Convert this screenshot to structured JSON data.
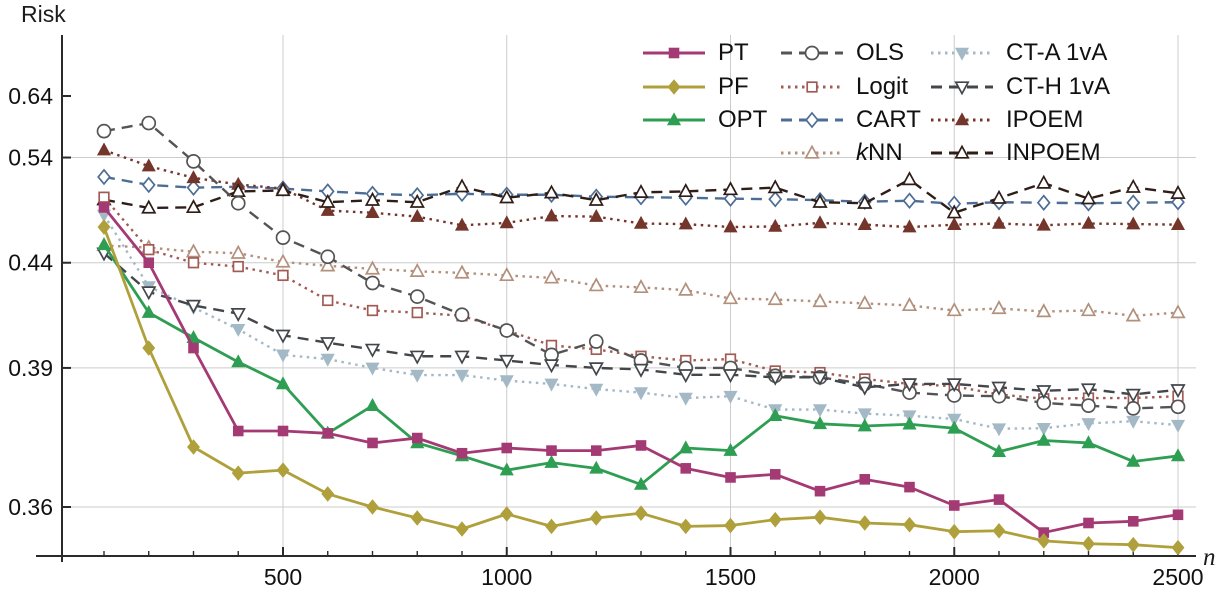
{
  "figure": {
    "y_axis_title": "Risk",
    "x_axis_title": "n"
  },
  "chart_data": {
    "type": "line",
    "title": "",
    "xlabel": "n",
    "ylabel": "Risk",
    "grid": true,
    "legend_position": "top-right",
    "y_scale": "nonlinear (log of risk-0.34); tick spacing widens toward bottom",
    "y_ticks": [
      {
        "value": 0.64,
        "label": "0.64",
        "gridline": false
      },
      {
        "value": 0.54,
        "label": "0.54",
        "gridline": true
      },
      {
        "value": 0.44,
        "label": "0.44",
        "gridline": true
      },
      {
        "value": 0.39,
        "label": "0.39",
        "gridline": true
      },
      {
        "value": 0.36,
        "label": "0.36",
        "gridline": true
      }
    ],
    "x_ticks": [
      {
        "value": 500,
        "label": "500"
      },
      {
        "value": 1000,
        "label": "1000"
      },
      {
        "value": 1500,
        "label": "1500"
      },
      {
        "value": 2000,
        "label": "2000"
      },
      {
        "value": 2500,
        "label": "2500"
      }
    ],
    "x_minor_step": 100,
    "xlim": [
      0,
      2540
    ],
    "ylim": [
      0.345,
      0.66
    ],
    "x": [
      100,
      200,
      300,
      400,
      500,
      600,
      700,
      800,
      900,
      1000,
      1100,
      1200,
      1300,
      1400,
      1500,
      1600,
      1700,
      1800,
      1900,
      2000,
      2100,
      2200,
      2300,
      2400,
      2500
    ],
    "series": [
      {
        "name": "PT",
        "color": "#a43a74",
        "linestyle": "solid",
        "marker": "square",
        "marker_filled": true,
        "italic_first": false,
        "values": [
          0.484,
          0.44,
          0.397,
          0.373,
          0.373,
          0.3725,
          0.3705,
          0.3715,
          0.3685,
          0.3695,
          0.369,
          0.369,
          0.37,
          0.3658,
          0.3643,
          0.3648,
          0.3622,
          0.364,
          0.3628,
          0.3602,
          0.361,
          0.3569,
          0.358,
          0.3582,
          0.359
        ]
      },
      {
        "name": "PF",
        "color": "#b0a03c",
        "linestyle": "solid",
        "marker": "diamond",
        "marker_filled": true,
        "italic_first": false,
        "values": [
          0.4665,
          0.397,
          0.3697,
          0.365,
          0.3655,
          0.3618,
          0.36,
          0.3586,
          0.3573,
          0.3591,
          0.3576,
          0.3586,
          0.3592,
          0.3576,
          0.3577,
          0.3584,
          0.3587,
          0.358,
          0.3578,
          0.357,
          0.3571,
          0.356,
          0.3557,
          0.3556,
          0.3553
        ]
      },
      {
        "name": "OPT",
        "color": "#2e9e52",
        "linestyle": "solid",
        "marker": "triangle-up",
        "marker_filled": true,
        "italic_first": false,
        "values": [
          0.4525,
          0.412,
          0.401,
          0.392,
          0.385,
          0.3725,
          0.379,
          0.3705,
          0.368,
          0.3655,
          0.3668,
          0.3658,
          0.3632,
          0.3695,
          0.369,
          0.3765,
          0.3746,
          0.3741,
          0.3745,
          0.3736,
          0.3688,
          0.371,
          0.3705,
          0.367,
          0.368
        ]
      },
      {
        "name": "OLS",
        "color": "#545454",
        "linestyle": "dashed",
        "marker": "circle",
        "marker_filled": false,
        "italic_first": false,
        "values": [
          0.578,
          0.591,
          0.535,
          0.488,
          0.458,
          0.444,
          0.4275,
          0.42,
          0.411,
          0.404,
          0.3945,
          0.3995,
          0.3925,
          0.39,
          0.39,
          0.3875,
          0.387,
          0.385,
          0.3825,
          0.3817,
          0.3815,
          0.3797,
          0.379,
          0.3783,
          0.3787
        ]
      },
      {
        "name": "Logit",
        "color": "#a15b54",
        "linestyle": "dotted",
        "marker": "square",
        "marker_filled": false,
        "italic_first": false,
        "values": [
          0.494,
          0.449,
          0.44,
          0.4375,
          0.432,
          0.418,
          0.413,
          0.412,
          0.4105,
          0.404,
          0.398,
          0.3965,
          0.394,
          0.3925,
          0.393,
          0.389,
          0.3885,
          0.3865,
          0.385,
          0.3843,
          0.382,
          0.3808,
          0.381,
          0.381,
          0.3815
        ]
      },
      {
        "name": "CART",
        "color": "#4e6d94",
        "linestyle": "dashed",
        "marker": "diamond",
        "marker_filled": false,
        "italic_first": false,
        "values": [
          0.516,
          0.507,
          0.504,
          0.505,
          0.503,
          0.5,
          0.4975,
          0.496,
          0.4975,
          0.4965,
          0.4965,
          0.4945,
          0.494,
          0.4935,
          0.4925,
          0.492,
          0.491,
          0.4895,
          0.4905,
          0.4875,
          0.489,
          0.4885,
          0.488,
          0.4885,
          0.489
        ]
      },
      {
        "name": "kNN",
        "color": "#b2907c",
        "linestyle": "dotted",
        "marker": "triangle-up",
        "marker_filled": false,
        "italic_first": true,
        "values": [
          0.452,
          0.4505,
          0.4475,
          0.4465,
          0.4405,
          0.438,
          0.436,
          0.4345,
          0.4335,
          0.432,
          0.4305,
          0.426,
          0.425,
          0.4235,
          0.419,
          0.4185,
          0.4175,
          0.4165,
          0.4155,
          0.413,
          0.414,
          0.4125,
          0.413,
          0.4105,
          0.412
        ]
      },
      {
        "name": "CT-A 1vA",
        "color": "#a4b9c6",
        "linestyle": "dotted",
        "marker": "triangle-down",
        "marker_filled": true,
        "italic_first": false,
        "values": [
          0.477,
          0.4255,
          0.4145,
          0.4045,
          0.3945,
          0.393,
          0.39,
          0.3877,
          0.3877,
          0.386,
          0.385,
          0.3835,
          0.3825,
          0.381,
          0.3815,
          0.378,
          0.378,
          0.377,
          0.3765,
          0.3757,
          0.3735,
          0.3736,
          0.3747,
          0.3752,
          0.3743
        ]
      },
      {
        "name": "CT-H 1vA",
        "color": "#43474b",
        "linestyle": "dashed",
        "marker": "triangle-down",
        "marker_filled": false,
        "italic_first": false,
        "values": [
          0.4465,
          0.4225,
          0.4155,
          0.4115,
          0.402,
          0.399,
          0.3965,
          0.394,
          0.394,
          0.3925,
          0.391,
          0.39,
          0.3895,
          0.3878,
          0.3878,
          0.387,
          0.387,
          0.384,
          0.385,
          0.385,
          0.384,
          0.383,
          0.3835,
          0.382,
          0.3833
        ]
      },
      {
        "name": "IPOEM",
        "color": "#74352b",
        "linestyle": "dotted",
        "marker": "triangle-up",
        "marker_filled": true,
        "italic_first": false,
        "values": [
          0.55,
          0.529,
          0.515,
          0.5075,
          0.503,
          0.481,
          0.479,
          0.4755,
          0.468,
          0.47,
          0.476,
          0.4755,
          0.4695,
          0.469,
          0.4665,
          0.467,
          0.47,
          0.4685,
          0.4665,
          0.4685,
          0.4695,
          0.468,
          0.4695,
          0.469,
          0.4685
        ]
      },
      {
        "name": "INPOEM",
        "color": "#2f1e18",
        "linestyle": "dashed",
        "marker": "triangle-up",
        "marker_filled": false,
        "italic_first": false,
        "values": [
          0.4915,
          0.4835,
          0.484,
          0.5,
          0.501,
          0.489,
          0.491,
          0.489,
          0.505,
          0.4935,
          0.4985,
          0.491,
          0.499,
          0.5,
          0.502,
          0.504,
          0.489,
          0.488,
          0.513,
          0.479,
          0.493,
          0.509,
          0.4925,
          0.5045,
          0.498
        ]
      }
    ],
    "legend_columns": [
      [
        0,
        1,
        2
      ],
      [
        3,
        4,
        5,
        6
      ],
      [
        7,
        8,
        9,
        10
      ]
    ],
    "draw_order": [
      5,
      9,
      10,
      6,
      4,
      3,
      7,
      8,
      2,
      0,
      1
    ]
  },
  "style": {
    "axis_color": "#2a2a2a",
    "grid_color": "#cccccc",
    "tick_label_color": "#111111"
  }
}
